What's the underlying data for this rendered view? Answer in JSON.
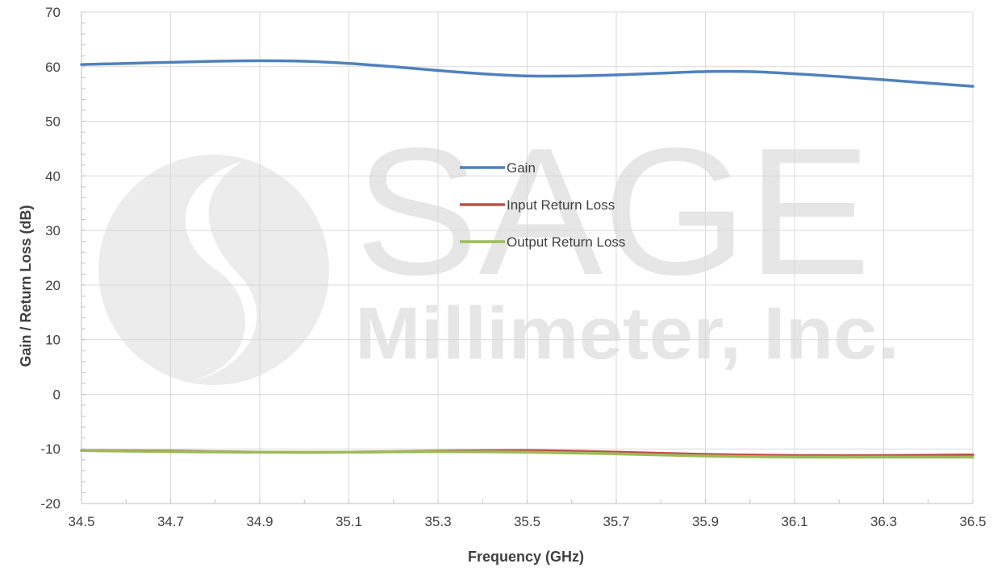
{
  "watermark": {
    "main": "SAGE",
    "sub": "Millimeter, Inc."
  },
  "chart_data": {
    "type": "line",
    "xlabel": "Frequency (GHz)",
    "ylabel": "Gain / Return Loss (dB)",
    "xlim": [
      34.5,
      36.5
    ],
    "ylim": [
      -20,
      70
    ],
    "x_ticks": [
      34.5,
      34.7,
      34.9,
      35.1,
      35.3,
      35.5,
      35.7,
      35.9,
      36.1,
      36.3,
      36.5
    ],
    "x_tick_labels": [
      "34.5",
      "34.7",
      "34.9",
      "35.1",
      "35.3",
      "35.5",
      "35.7",
      "35.9",
      "36.1",
      "36.3",
      "36.5"
    ],
    "y_ticks": [
      -20,
      -10,
      0,
      10,
      20,
      30,
      40,
      50,
      60,
      70
    ],
    "y_tick_labels": [
      "-20",
      "-10",
      "0",
      "10",
      "20",
      "30",
      "40",
      "50",
      "60",
      "70"
    ],
    "grid": true,
    "legend_position": "center",
    "series": [
      {
        "name": "Gain",
        "color": "#4f81bd",
        "x": [
          34.5,
          34.6,
          34.7,
          34.8,
          34.9,
          35.0,
          35.1,
          35.2,
          35.3,
          35.4,
          35.5,
          35.6,
          35.7,
          35.8,
          35.9,
          36.0,
          36.1,
          36.2,
          36.3,
          36.4,
          36.5
        ],
        "y": [
          60.4,
          60.6,
          60.8,
          61.0,
          61.1,
          61.0,
          60.6,
          60.0,
          59.3,
          58.7,
          58.3,
          58.3,
          58.5,
          58.8,
          59.1,
          59.1,
          58.7,
          58.2,
          57.6,
          57.0,
          56.4
        ]
      },
      {
        "name": "Input Return Loss",
        "color": "#c0504d",
        "x": [
          34.5,
          34.7,
          34.9,
          35.1,
          35.3,
          35.5,
          35.7,
          35.9,
          36.1,
          36.3,
          36.5
        ],
        "y": [
          -10.3,
          -10.4,
          -10.6,
          -10.6,
          -10.4,
          -10.3,
          -10.6,
          -11.0,
          -11.2,
          -11.2,
          -11.1
        ]
      },
      {
        "name": "Output Return Loss",
        "color": "#9bbb59",
        "x": [
          34.5,
          34.7,
          34.9,
          35.1,
          35.3,
          35.5,
          35.7,
          35.9,
          36.1,
          36.3,
          36.5
        ],
        "y": [
          -10.3,
          -10.5,
          -10.6,
          -10.6,
          -10.5,
          -10.6,
          -10.9,
          -11.3,
          -11.5,
          -11.5,
          -11.5
        ]
      }
    ]
  }
}
